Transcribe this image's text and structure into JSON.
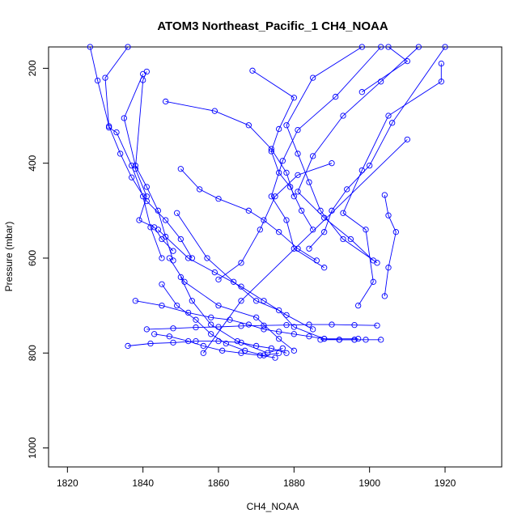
{
  "chart_data": {
    "type": "line",
    "title": "ATOM3 Northeast_Pacific_1 CH4_NOAA",
    "xlabel": "CH4_NOAA",
    "ylabel": "Pressure (mbar)",
    "xlim": [
      1815,
      1935
    ],
    "ylim": [
      1040,
      155
    ],
    "y_inverted": true,
    "xticks": [
      1820,
      1840,
      1860,
      1880,
      1900,
      1920
    ],
    "yticks": [
      200,
      400,
      600,
      800,
      1000
    ],
    "grid": false,
    "legend": "none",
    "marker": "open-circle",
    "color": "#0000ff",
    "series": [
      {
        "x": [
          1826,
          1828,
          1831,
          1834,
          1837,
          1841,
          1846,
          1850,
          1853
        ],
        "y": [
          155,
          226,
          322,
          380,
          430,
          480,
          520,
          560,
          600
        ]
      },
      {
        "x": [
          1836,
          1830,
          1831,
          1833,
          1837,
          1840,
          1842,
          1845
        ],
        "y": [
          155,
          220,
          325,
          335,
          405,
          470,
          535,
          600
        ]
      },
      {
        "x": [
          1840,
          1835,
          1838,
          1841,
          1844,
          1846,
          1848
        ],
        "y": [
          212,
          305,
          405,
          450,
          500,
          555,
          605
        ]
      },
      {
        "x": [
          1841,
          1840,
          1838,
          1841,
          1839,
          1843,
          1845,
          1848
        ],
        "y": [
          207,
          225,
          412,
          470,
          520,
          535,
          560,
          585
        ]
      },
      {
        "x": [
          1846,
          1859,
          1868,
          1874,
          1878,
          1880
        ],
        "y": [
          270,
          290,
          320,
          370,
          420,
          470
        ]
      },
      {
        "x": [
          1869,
          1880,
          1876,
          1874,
          1876,
          1879,
          1882,
          1885
        ],
        "y": [
          205,
          262,
          328,
          375,
          420,
          450,
          500,
          540
        ]
      },
      {
        "x": [
          1898,
          1885,
          1878,
          1881,
          1884,
          1887,
          1893,
          1902
        ],
        "y": [
          155,
          220,
          320,
          380,
          440,
          500,
          560,
          610
        ]
      },
      {
        "x": [
          1903,
          1891,
          1881,
          1877,
          1874,
          1878,
          1880,
          1888
        ],
        "y": [
          155,
          260,
          330,
          395,
          470,
          520,
          580,
          620
        ]
      },
      {
        "x": [
          1913,
          1903,
          1893,
          1885,
          1881,
          1888,
          1895,
          1901
        ],
        "y": [
          155,
          228,
          300,
          385,
          460,
          515,
          560,
          605
        ]
      },
      {
        "x": [
          1920,
          1906,
          1900,
          1894,
          1890,
          1888,
          1884
        ],
        "y": [
          155,
          315,
          405,
          455,
          500,
          545,
          580
        ]
      },
      {
        "x": [
          1919,
          1919,
          1905,
          1898,
          1893,
          1899,
          1901,
          1897
        ],
        "y": [
          190,
          228,
          300,
          415,
          505,
          540,
          650,
          700
        ]
      },
      {
        "x": [
          1905,
          1910,
          1898
        ],
        "y": [
          155,
          185,
          250
        ]
      },
      {
        "x": [
          1910,
          1866,
          1856
        ],
        "y": [
          350,
          690,
          800
        ]
      },
      {
        "x": [
          1904,
          1905,
          1907,
          1905,
          1904
        ],
        "y": [
          467,
          510,
          545,
          620,
          680
        ]
      },
      {
        "x": [
          1850,
          1855,
          1860,
          1868,
          1872,
          1876,
          1881,
          1886
        ],
        "y": [
          412,
          455,
          475,
          500,
          520,
          545,
          580,
          605
        ]
      },
      {
        "x": [
          1849,
          1857,
          1864,
          1870,
          1876,
          1880,
          1888,
          1897
        ],
        "y": [
          505,
          600,
          650,
          690,
          710,
          745,
          770,
          770
        ]
      },
      {
        "x": [
          1844,
          1852,
          1859,
          1866,
          1872,
          1878,
          1885
        ],
        "y": [
          540,
          600,
          630,
          660,
          690,
          720,
          750
        ]
      },
      {
        "x": [
          1847,
          1851,
          1860,
          1870,
          1876,
          1880
        ],
        "y": [
          600,
          650,
          700,
          725,
          770,
          795
        ]
      },
      {
        "x": [
          1850,
          1853,
          1858,
          1865,
          1873,
          1877
        ],
        "y": [
          640,
          690,
          740,
          775,
          800,
          790
        ]
      },
      {
        "x": [
          1860,
          1866,
          1871,
          1875,
          1881,
          1890
        ],
        "y": [
          645,
          610,
          540,
          470,
          425,
          400
        ]
      },
      {
        "x": [
          1838,
          1845,
          1852,
          1858,
          1863,
          1868,
          1872,
          1876,
          1880,
          1884,
          1888,
          1892,
          1896
        ],
        "y": [
          690,
          700,
          715,
          725,
          730,
          740,
          750,
          755,
          760,
          765,
          770,
          772,
          772
        ]
      },
      {
        "x": [
          1841,
          1848,
          1854,
          1860,
          1866,
          1872,
          1878,
          1884,
          1890,
          1896,
          1902
        ],
        "y": [
          750,
          748,
          746,
          745,
          743,
          742,
          741,
          740,
          740,
          741,
          742
        ]
      },
      {
        "x": [
          1836,
          1842,
          1848,
          1854,
          1860,
          1866,
          1870,
          1874,
          1878
        ],
        "y": [
          785,
          780,
          778,
          775,
          775,
          778,
          785,
          790,
          800
        ]
      },
      {
        "x": [
          1843,
          1847,
          1852,
          1856,
          1861,
          1866,
          1871,
          1875
        ],
        "y": [
          760,
          765,
          775,
          785,
          795,
          800,
          805,
          810
        ]
      },
      {
        "x": [
          1887,
          1892,
          1896,
          1899,
          1903
        ],
        "y": [
          772,
          772,
          772,
          772,
          772
        ]
      },
      {
        "x": [
          1845,
          1849,
          1854,
          1858,
          1862,
          1867,
          1872,
          1876
        ],
        "y": [
          655,
          700,
          730,
          760,
          780,
          795,
          805,
          800
        ]
      }
    ]
  }
}
